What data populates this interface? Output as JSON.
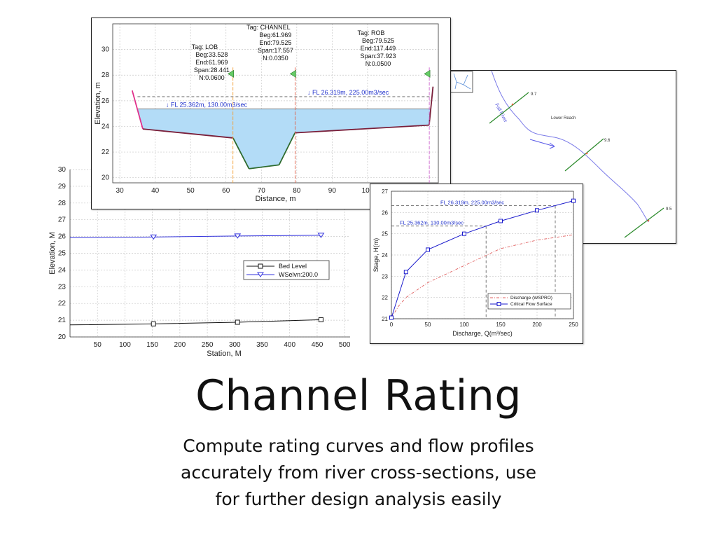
{
  "headline": {
    "title": "Channel Rating",
    "subtitle_lines": [
      "Compute rating curves and flow profiles",
      "accurately from river cross-sections, use",
      "for further design analysis easily"
    ]
  },
  "colors": {
    "water_fill": "#b3dcf7",
    "ground_line": "#7a1f3a",
    "channel_line": "#2e6b2e",
    "bank_left": "#e0308a",
    "fl_text": "#2233cc",
    "marker_fill": "#66cc66",
    "lob_line": "#f2a13a",
    "channel_divider": "#e0604a",
    "rob_line": "#cc66cc",
    "river_line": "#6a6ae8",
    "section_line": "#2a8a2a",
    "critical_curve": "#1a1acc",
    "discharge_curve": "#e06060"
  },
  "map": {
    "river_label": "Fall River",
    "reach_label": "Lower Reach",
    "sections": [
      {
        "label": "9.7"
      },
      {
        "label": "9.6"
      },
      {
        "label": "9.5"
      }
    ]
  },
  "chart_data": [
    {
      "type": "line",
      "name": "cross-section",
      "xlabel": "Distance, m",
      "ylabel": "Elevation, m",
      "xlim": [
        28,
        120
      ],
      "ylim": [
        19.6,
        32
      ],
      "xticks": [
        30,
        40,
        50,
        60,
        70,
        80,
        90,
        100
      ],
      "yticks": [
        20,
        22,
        24,
        26,
        28,
        30
      ],
      "grid": true,
      "ground": {
        "x": [
          33.5,
          36.5,
          62.0,
          66.5,
          75.0,
          79.5,
          117.4,
          118.5
        ],
        "y": [
          26.8,
          23.8,
          23.1,
          20.7,
          21.0,
          23.5,
          24.1,
          27.1
        ]
      },
      "water_levels": [
        {
          "label": "FL 26.319m, 225.00m3/sec",
          "y": 26.319
        },
        {
          "label": "FL 25.362m, 130.00m3/sec",
          "y": 25.362
        }
      ],
      "regions": [
        {
          "tag": "Tag: LOB",
          "beg": "Beg:33.528",
          "end": "End:61.969",
          "span": "Span:28.441",
          "n": "N:0.0600",
          "divider_x": 61.969
        },
        {
          "tag": "Tag: CHANNEL",
          "beg": "Beg:61.969",
          "end": "End:79.525",
          "span": "Span:17.557",
          "n": "N:0.0350",
          "divider_x": 79.525
        },
        {
          "tag": "Tag: ROB",
          "beg": "Beg:79.525",
          "end": "End:117.449",
          "span": "Span:37.923",
          "n": "N:0.0500",
          "divider_x": 117.449
        }
      ]
    },
    {
      "type": "line",
      "name": "longitudinal-profile",
      "xlabel": "Station, M",
      "ylabel": "Elevation, M",
      "xlim": [
        0,
        510
      ],
      "ylim": [
        20,
        30
      ],
      "xticks": [
        50,
        100,
        150,
        200,
        250,
        300,
        350,
        400,
        450,
        500
      ],
      "yticks": [
        20,
        21,
        22,
        23,
        24,
        25,
        26,
        27,
        28,
        29,
        30
      ],
      "grid": true,
      "legend": "center-right",
      "series": [
        {
          "name": "Bed Level",
          "x": [
            0,
            152,
            305,
            457
          ],
          "y": [
            20.72,
            20.78,
            20.88,
            21.03
          ]
        },
        {
          "name": "WSelvn:200.0",
          "x": [
            0,
            152,
            305,
            457
          ],
          "y": [
            25.93,
            25.97,
            26.03,
            26.07
          ]
        }
      ]
    },
    {
      "type": "line",
      "name": "rating-curve",
      "xlabel": "Discharge, Q(m³/sec)",
      "ylabel": "Stage, H(m)",
      "xlim": [
        0,
        250
      ],
      "ylim": [
        21,
        27
      ],
      "xticks": [
        0,
        50,
        100,
        150,
        200,
        250
      ],
      "yticks": [
        21,
        22,
        23,
        24,
        25,
        26,
        27
      ],
      "grid": true,
      "legend": "bottom-right",
      "series": [
        {
          "name": "Discharge (WSPRO)",
          "x": [
            0,
            10,
            20,
            50,
            100,
            150,
            200,
            250
          ],
          "y": [
            21.05,
            21.6,
            22.0,
            22.7,
            23.5,
            24.3,
            24.7,
            24.95
          ]
        },
        {
          "name": "Critical Flow Surface",
          "x": [
            0,
            20,
            50,
            100,
            150,
            200,
            250
          ],
          "y": [
            21.05,
            23.2,
            24.25,
            25.0,
            25.6,
            26.1,
            26.55
          ]
        }
      ],
      "annotations": [
        {
          "label": "FL 26.319m, 225.00m3/sec",
          "y": 26.319,
          "x": 225
        },
        {
          "label": "FL 25.362m, 130.00m3/sec",
          "y": 25.362,
          "x": 130
        }
      ]
    }
  ]
}
